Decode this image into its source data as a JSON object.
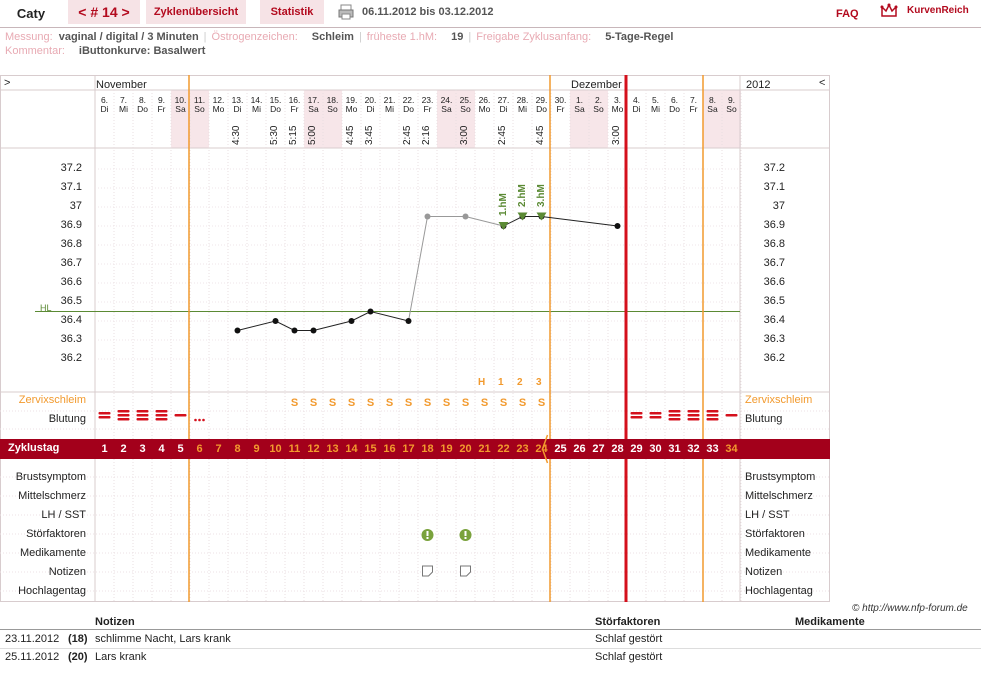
{
  "header": {
    "user": "Caty",
    "cycle_tab": "< # 14 >",
    "overview_tab": "Zyklenübersicht",
    "stats_tab": "Statistik",
    "date_range": "06.11.2012 bis 03.12.2012",
    "faq": "FAQ",
    "brand": "KurvenReich"
  },
  "meta": {
    "messung_label": "Messung:",
    "messung_value": "vaginal / digital / 3 Minuten",
    "oestrogen_label": "Östrogenzeichen:",
    "oestrogen_value": "Schleim",
    "hm_label": "früheste 1.hM:",
    "hm_value": "19",
    "freigabe_label": "Freigabe Zyklusanfang:",
    "freigabe_value": "5-Tage-Regel",
    "kommentar_label": "Kommentar:",
    "kommentar_value": "iButtonkurve: Basalwert"
  },
  "chart": {
    "nav_left": ">",
    "nav_right": "<",
    "month1": "November",
    "month2": "Dezember",
    "year": "2012",
    "hl_label": "HL",
    "days": [
      {
        "d": "6.",
        "w": "Di"
      },
      {
        "d": "7.",
        "w": "Mi"
      },
      {
        "d": "8.",
        "w": "Do"
      },
      {
        "d": "9.",
        "w": "Fr"
      },
      {
        "d": "10.",
        "w": "Sa"
      },
      {
        "d": "11.",
        "w": "So"
      },
      {
        "d": "12.",
        "w": "Mo"
      },
      {
        "d": "13.",
        "w": "Di"
      },
      {
        "d": "14.",
        "w": "Mi"
      },
      {
        "d": "15.",
        "w": "Do"
      },
      {
        "d": "16.",
        "w": "Fr"
      },
      {
        "d": "17.",
        "w": "Sa"
      },
      {
        "d": "18.",
        "w": "So"
      },
      {
        "d": "19.",
        "w": "Mo"
      },
      {
        "d": "20.",
        "w": "Di"
      },
      {
        "d": "21.",
        "w": "Mi"
      },
      {
        "d": "22.",
        "w": "Do"
      },
      {
        "d": "23.",
        "w": "Fr"
      },
      {
        "d": "24.",
        "w": "Sa"
      },
      {
        "d": "25.",
        "w": "So"
      },
      {
        "d": "26.",
        "w": "Mo"
      },
      {
        "d": "27.",
        "w": "Di"
      },
      {
        "d": "28.",
        "w": "Mi"
      },
      {
        "d": "29.",
        "w": "Do"
      },
      {
        "d": "30.",
        "w": "Fr"
      },
      {
        "d": "1.",
        "w": "Sa"
      },
      {
        "d": "2.",
        "w": "So"
      },
      {
        "d": "3.",
        "w": "Mo"
      },
      {
        "d": "4.",
        "w": "Di"
      },
      {
        "d": "5.",
        "w": "Mi"
      },
      {
        "d": "6.",
        "w": "Do"
      },
      {
        "d": "7.",
        "w": "Fr"
      },
      {
        "d": "8.",
        "w": "Sa"
      },
      {
        "d": "9.",
        "w": "So"
      }
    ],
    "times": [
      "",
      "",
      "",
      "",
      "",
      "",
      "",
      "4:30",
      "",
      "5:30",
      "5:15",
      "5:00",
      "",
      "4:45",
      "3:45",
      "",
      "2:45",
      "2:16",
      "",
      "3:00",
      "",
      "2:45",
      "",
      "4:45",
      "",
      "",
      "",
      "3:00",
      "",
      "",
      "",
      "",
      "",
      ""
    ],
    "cycle_days": [
      "1",
      "2",
      "3",
      "4",
      "5",
      "6",
      "7",
      "8",
      "9",
      "10",
      "11",
      "12",
      "13",
      "14",
      "15",
      "16",
      "17",
      "18",
      "19",
      "20",
      "21",
      "22",
      "23",
      "24",
      "25",
      "26",
      "27",
      "28",
      "29",
      "30",
      "31",
      "32",
      "33",
      "34"
    ],
    "row_labels": [
      "Zervixschleim",
      "Blutung",
      "Zyklustag",
      "Brustsymptom",
      "Mittelschmerz",
      "LH / SST",
      "Störfaktoren",
      "Medikamente",
      "Notizen",
      "Hochlagentag"
    ],
    "mucus": [
      "",
      "",
      "",
      "",
      "",
      "",
      "",
      "",
      "",
      "",
      "S",
      "S",
      "S",
      "S",
      "S",
      "S",
      "S",
      "S",
      "S",
      "S",
      "S",
      "S",
      "S",
      "S",
      "",
      "",
      "",
      "",
      "",
      "",
      "",
      "",
      "",
      ""
    ],
    "peak_labels": {
      "h": "H",
      "one": "1",
      "two": "2",
      "three": "3"
    },
    "hm_labels": [
      "1.hM",
      "2.hM",
      "3.hM"
    ],
    "y_ticks": [
      "37.2",
      "37.1",
      "37",
      "36.9",
      "36.8",
      "36.7",
      "36.6",
      "36.5",
      "36.4",
      "36.3",
      "36.2"
    ],
    "copyright": "© http://www.nfp-forum.de",
    "colors": {
      "accent": "#a3001b",
      "orange": "#f29a2e",
      "red": "#d4101c",
      "green": "#5b8a34"
    }
  },
  "chart_data": {
    "type": "line",
    "x": [
      "13.",
      "15.",
      "16.",
      "17.",
      "19.",
      "20.",
      "22.",
      "23.",
      "25.",
      "27.",
      "28.",
      "29.",
      "3."
    ],
    "series": [
      {
        "values": [
          36.35,
          36.4,
          36.35,
          36.35,
          36.4,
          36.45,
          36.4,
          36.95,
          36.95,
          36.9,
          36.95,
          36.95,
          36.9
        ]
      }
    ],
    "ylim": [
      36.1,
      37.3
    ],
    "hl": 36.45
  },
  "notes": {
    "headers": {
      "notes": "Notizen",
      "stoer": "Störfaktoren",
      "medi": "Medikamente"
    },
    "rows": [
      {
        "date": "23.11.2012",
        "day": "(18)",
        "note": "schlimme Nacht, Lars krank",
        "stoer": "Schlaf gestört"
      },
      {
        "date": "25.11.2012",
        "day": "(20)",
        "note": "Lars krank",
        "stoer": "Schlaf gestört"
      }
    ]
  }
}
